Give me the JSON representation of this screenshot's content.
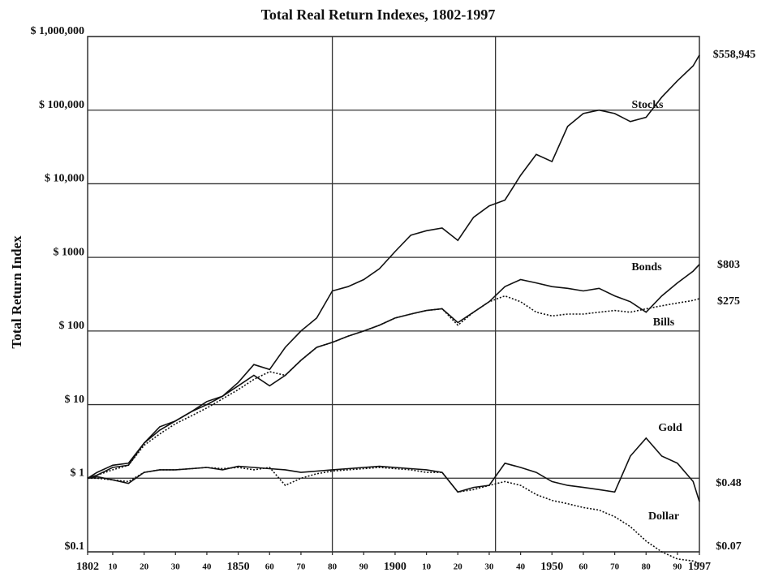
{
  "chart_data": {
    "type": "line",
    "title": "Total Real Return Indexes, 1802-1997",
    "y_label": "Total Return Index",
    "log_scale_y": true,
    "grid": true,
    "xlim": [
      1802,
      1997
    ],
    "ylim": [
      0.1,
      1000000
    ],
    "xgrid": [
      1880,
      1932
    ],
    "yticks": [
      {
        "value": 0.1,
        "label": "$0.1"
      },
      {
        "value": 1,
        "label": "$ 1"
      },
      {
        "value": 10,
        "label": "$ 10"
      },
      {
        "value": 100,
        "label": "$ 100"
      },
      {
        "value": 1000,
        "label": "$ 1000"
      },
      {
        "value": 10000,
        "label": "$ 10,000"
      },
      {
        "value": 100000,
        "label": "$ 100,000"
      },
      {
        "value": 1000000,
        "label": "$ 1,000,000"
      }
    ],
    "xticks": [
      {
        "value": 1802,
        "label": "1802"
      },
      {
        "value": 1810,
        "label": "10"
      },
      {
        "value": 1820,
        "label": "20"
      },
      {
        "value": 1830,
        "label": "30"
      },
      {
        "value": 1840,
        "label": "40"
      },
      1850,
      {
        "value": 1860,
        "label": "60"
      },
      {
        "value": 1870,
        "label": "70"
      },
      {
        "value": 1880,
        "label": "80"
      },
      {
        "value": 1890,
        "label": "90"
      },
      1900,
      {
        "value": 1910,
        "label": "10"
      },
      {
        "value": 1920,
        "label": "20"
      },
      {
        "value": 1930,
        "label": "30"
      },
      {
        "value": 1940,
        "label": "40"
      },
      1950,
      {
        "value": 1960,
        "label": "60"
      },
      {
        "value": 1970,
        "label": "70"
      },
      {
        "value": 1980,
        "label": "80"
      },
      {
        "value": 1990,
        "label": "90"
      },
      1997
    ],
    "x": [
      1802,
      1805,
      1810,
      1815,
      1820,
      1825,
      1830,
      1835,
      1840,
      1845,
      1850,
      1855,
      1860,
      1865,
      1870,
      1875,
      1880,
      1885,
      1890,
      1895,
      1900,
      1905,
      1910,
      1915,
      1920,
      1925,
      1930,
      1935,
      1940,
      1945,
      1950,
      1955,
      1960,
      1965,
      1970,
      1975,
      1980,
      1985,
      1990,
      1995,
      1997
    ],
    "series": [
      {
        "name": "Stocks",
        "color": "#111111",
        "dash": "none",
        "end_label": "$558,945",
        "values": [
          1,
          1.2,
          1.5,
          1.6,
          3,
          5,
          6,
          8,
          11,
          13,
          20,
          35,
          30,
          60,
          100,
          150,
          350,
          400,
          500,
          700,
          1200,
          2000,
          2300,
          2500,
          1700,
          3500,
          5000,
          6000,
          13000,
          25000,
          20000,
          60000,
          90000,
          100000,
          90000,
          70000,
          80000,
          150000,
          250000,
          400000,
          558945
        ]
      },
      {
        "name": "Bonds",
        "color": "#111111",
        "dash": "none",
        "end_label": "$803",
        "values": [
          1,
          1.1,
          1.4,
          1.5,
          3,
          4.5,
          6,
          8,
          10,
          13,
          18,
          25,
          18,
          25,
          40,
          60,
          70,
          85,
          100,
          120,
          150,
          170,
          190,
          200,
          130,
          180,
          250,
          400,
          500,
          450,
          400,
          380,
          350,
          380,
          300,
          250,
          180,
          300,
          450,
          650,
          803
        ]
      },
      {
        "name": "Bills",
        "color": "#111111",
        "dash": "2,2",
        "end_label": "$275",
        "values": [
          1,
          1.1,
          1.3,
          1.5,
          2.8,
          4,
          5.5,
          7,
          9,
          12,
          16,
          22,
          28,
          25,
          40,
          60,
          70,
          85,
          100,
          120,
          150,
          170,
          190,
          200,
          120,
          180,
          250,
          300,
          250,
          180,
          160,
          170,
          170,
          180,
          190,
          180,
          200,
          220,
          240,
          260,
          275
        ]
      },
      {
        "name": "Gold",
        "color": "#111111",
        "dash": "none",
        "end_label": "$0.48",
        "values": [
          1,
          1.05,
          0.95,
          0.85,
          1.2,
          1.3,
          1.3,
          1.35,
          1.4,
          1.3,
          1.45,
          1.4,
          1.35,
          1.3,
          1.2,
          1.25,
          1.3,
          1.35,
          1.4,
          1.45,
          1.4,
          1.35,
          1.3,
          1.2,
          0.65,
          0.75,
          0.8,
          1.6,
          1.4,
          1.2,
          0.9,
          0.8,
          0.75,
          0.7,
          0.65,
          2,
          3.5,
          2,
          1.6,
          0.9,
          0.48
        ]
      },
      {
        "name": "Dollar",
        "color": "#111111",
        "dash": "2,2",
        "end_label": "$0.07",
        "values": [
          1,
          1,
          0.95,
          0.9,
          1.2,
          1.3,
          1.3,
          1.35,
          1.4,
          1.35,
          1.4,
          1.3,
          1.4,
          0.8,
          1,
          1.15,
          1.25,
          1.3,
          1.35,
          1.4,
          1.35,
          1.3,
          1.2,
          1.2,
          0.65,
          0.7,
          0.8,
          0.9,
          0.8,
          0.6,
          0.5,
          0.45,
          0.4,
          0.37,
          0.3,
          0.22,
          0.14,
          0.1,
          0.08,
          0.075,
          0.07
        ]
      }
    ]
  }
}
